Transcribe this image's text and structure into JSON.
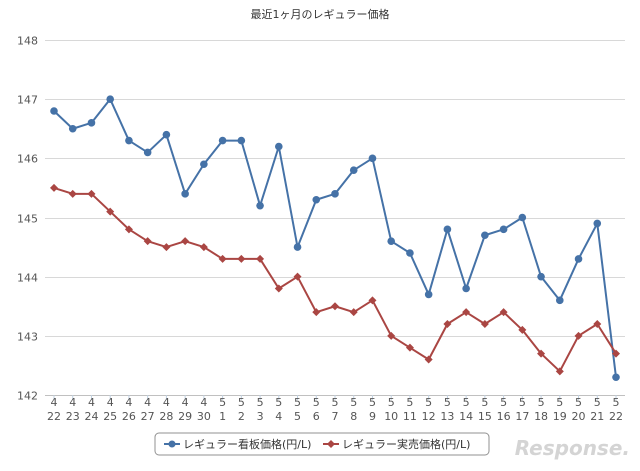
{
  "chart_data": {
    "type": "line",
    "title": "最近1ヶ月のレギュラー価格",
    "xlabel": "",
    "ylabel": "",
    "ylim": [
      142,
      148
    ],
    "yticks": [
      142,
      143,
      144,
      145,
      146,
      147,
      148
    ],
    "grid": true,
    "legend_position": "bottom",
    "categories": [
      [
        "4",
        "22"
      ],
      [
        "4",
        "23"
      ],
      [
        "4",
        "24"
      ],
      [
        "4",
        "25"
      ],
      [
        "4",
        "26"
      ],
      [
        "4",
        "27"
      ],
      [
        "4",
        "28"
      ],
      [
        "4",
        "29"
      ],
      [
        "4",
        "30"
      ],
      [
        "5",
        "1"
      ],
      [
        "5",
        "2"
      ],
      [
        "5",
        "3"
      ],
      [
        "5",
        "4"
      ],
      [
        "5",
        "5"
      ],
      [
        "5",
        "6"
      ],
      [
        "5",
        "7"
      ],
      [
        "5",
        "8"
      ],
      [
        "5",
        "9"
      ],
      [
        "5",
        "10"
      ],
      [
        "5",
        "11"
      ],
      [
        "5",
        "12"
      ],
      [
        "5",
        "13"
      ],
      [
        "5",
        "14"
      ],
      [
        "5",
        "15"
      ],
      [
        "5",
        "16"
      ],
      [
        "5",
        "17"
      ],
      [
        "5",
        "18"
      ],
      [
        "5",
        "19"
      ],
      [
        "5",
        "20"
      ],
      [
        "5",
        "21"
      ],
      [
        "5",
        "22"
      ]
    ],
    "series": [
      {
        "name": "レギュラー看板価格(円/L)",
        "color": "#4572A7",
        "marker": "circle",
        "values": [
          146.8,
          146.5,
          146.6,
          147.0,
          146.3,
          146.1,
          146.4,
          145.4,
          145.9,
          146.3,
          146.3,
          145.2,
          146.2,
          144.5,
          145.3,
          145.4,
          145.8,
          146.0,
          144.6,
          144.4,
          143.7,
          144.8,
          143.8,
          144.7,
          144.8,
          145.0,
          144.0,
          143.6,
          144.3,
          144.9,
          142.3
        ]
      },
      {
        "name": "レギュラー実売価格(円/L)",
        "color": "#AA4643",
        "marker": "diamond",
        "values": [
          145.5,
          145.4,
          145.4,
          145.1,
          144.8,
          144.6,
          144.5,
          144.6,
          144.5,
          144.3,
          144.3,
          144.3,
          143.8,
          144.0,
          143.4,
          143.5,
          143.4,
          143.6,
          143.0,
          142.8,
          142.6,
          143.2,
          143.4,
          143.2,
          143.4,
          143.1,
          142.7,
          142.4,
          143.0,
          143.2,
          142.7
        ]
      }
    ]
  },
  "watermark": {
    "text": "Response."
  }
}
